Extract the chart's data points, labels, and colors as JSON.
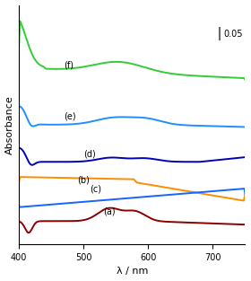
{
  "x_min": 400,
  "x_max": 750,
  "xlabel": "λ / nm",
  "ylabel": "Absorbance",
  "xticks": [
    400,
    500,
    600,
    700
  ],
  "background_color": "#ffffff",
  "scale_bar_value": 0.05,
  "curves": {
    "a": {
      "color": "#8B0000",
      "label": "(a)"
    },
    "b": {
      "color": "#FF8C00",
      "label": "(b)"
    },
    "c": {
      "color": "#1565FF",
      "label": "(c)"
    },
    "d": {
      "color": "#0000BB",
      "label": "(d)"
    },
    "e": {
      "color": "#1E90FF",
      "label": "(e)"
    },
    "f": {
      "color": "#32CD32",
      "label": "(f)"
    }
  }
}
